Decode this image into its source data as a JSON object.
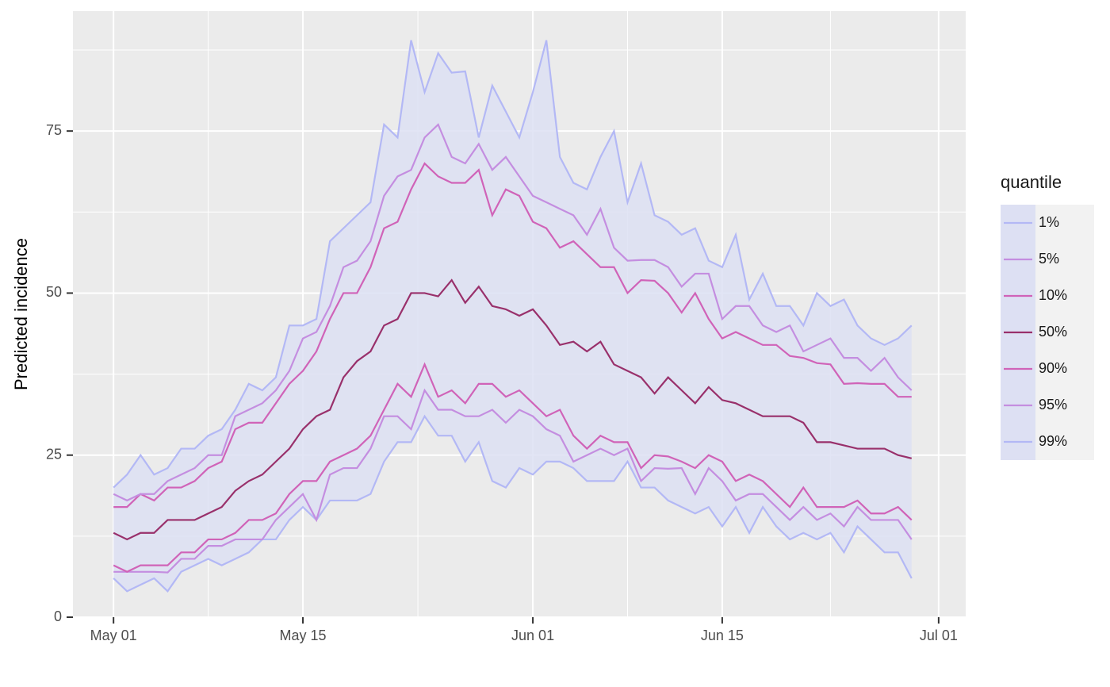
{
  "chart_data": {
    "type": "line",
    "ylabel": "Predicted incidence",
    "legend_title": "quantile",
    "legend_position": "right",
    "grid": true,
    "ribbon_color": "#dde0f3",
    "xlim": [
      "Apr 28",
      "Jul 03"
    ],
    "xticks": [
      "May 01",
      "May 15",
      "Jun 01",
      "Jun 15",
      "Jul 01"
    ],
    "ylim": [
      0,
      93.5
    ],
    "yticks": [
      0,
      25,
      50,
      75
    ],
    "x": [
      "May 01",
      "May 02",
      "May 03",
      "May 04",
      "May 05",
      "May 06",
      "May 07",
      "May 08",
      "May 09",
      "May 10",
      "May 11",
      "May 12",
      "May 13",
      "May 14",
      "May 15",
      "May 16",
      "May 17",
      "May 18",
      "May 19",
      "May 20",
      "May 21",
      "May 22",
      "May 23",
      "May 24",
      "May 25",
      "May 26",
      "May 27",
      "May 28",
      "May 29",
      "May 30",
      "May 31",
      "Jun 01",
      "Jun 02",
      "Jun 03",
      "Jun 04",
      "Jun 05",
      "Jun 06",
      "Jun 07",
      "Jun 08",
      "Jun 09",
      "Jun 10",
      "Jun 11",
      "Jun 12",
      "Jun 13",
      "Jun 14",
      "Jun 15",
      "Jun 16",
      "Jun 17",
      "Jun 18",
      "Jun 19",
      "Jun 20",
      "Jun 21",
      "Jun 22",
      "Jun 23",
      "Jun 24",
      "Jun 25",
      "Jun 26",
      "Jun 27",
      "Jun 28",
      "Jun 29"
    ],
    "series": [
      {
        "name": "1%",
        "color": "#b3b8f5",
        "values": [
          6,
          4,
          5,
          6,
          4,
          7,
          8,
          9,
          8,
          9,
          10,
          12,
          12,
          15,
          17,
          15,
          18,
          18,
          18,
          19,
          24,
          27,
          27,
          31,
          28,
          28,
          24,
          27,
          21,
          20,
          23,
          22,
          24,
          24,
          23,
          21,
          21,
          21,
          24,
          20,
          20,
          18,
          17,
          16,
          17,
          14,
          17,
          13,
          17,
          14,
          12,
          13,
          12,
          13,
          10,
          14,
          12,
          10,
          10,
          6
        ]
      },
      {
        "name": "5%",
        "color": "#c48ee0",
        "values": [
          7,
          7,
          7,
          7,
          6.9,
          9,
          9,
          11,
          11,
          12,
          12,
          12,
          15,
          17,
          19,
          15,
          22,
          23,
          23,
          26,
          31,
          31,
          29,
          35,
          32,
          32,
          31,
          31,
          32,
          30,
          32,
          31,
          29,
          28,
          24,
          25,
          26,
          25,
          26,
          21,
          23,
          22.9,
          23,
          19,
          23,
          21,
          18,
          19,
          19,
          17,
          15,
          17,
          15,
          16,
          14,
          17,
          15,
          15,
          15,
          12
        ]
      },
      {
        "name": "10%",
        "color": "#d063b8",
        "values": [
          8,
          7,
          8,
          8,
          8,
          10,
          10,
          12,
          12,
          13,
          15,
          15,
          16,
          19,
          21,
          21,
          24,
          25,
          26,
          28,
          32,
          36,
          34,
          39,
          34,
          35,
          33,
          36,
          36,
          34,
          35,
          33,
          31,
          32,
          28,
          26,
          28,
          27,
          27,
          23,
          25,
          24.8,
          24,
          23,
          25,
          24,
          21,
          22,
          21,
          19,
          17,
          20,
          17,
          17,
          17,
          18,
          16,
          16,
          17,
          15
        ]
      },
      {
        "name": "50%",
        "color": "#99306b",
        "values": [
          13,
          12,
          13,
          13,
          15,
          15,
          15,
          16,
          17,
          19.5,
          21,
          22,
          24,
          26,
          29,
          31,
          32,
          37,
          39.5,
          41,
          45,
          46,
          50,
          50,
          49.5,
          52,
          48.5,
          51,
          48,
          47.5,
          46.5,
          47.5,
          45,
          42,
          42.5,
          41,
          42.5,
          39,
          38,
          37,
          34.5,
          37,
          35,
          33,
          35.5,
          33.5,
          33,
          32,
          31,
          31,
          31,
          30,
          27,
          27,
          26.5,
          26,
          26,
          26,
          25,
          24.5
        ]
      },
      {
        "name": "90%",
        "color": "#d063b8",
        "values": [
          17,
          17,
          19,
          18,
          20,
          20,
          21,
          23,
          24,
          29,
          30,
          30,
          33,
          36,
          38,
          41,
          46,
          50,
          50,
          54,
          60,
          61,
          66,
          70,
          68,
          67,
          67,
          69,
          62,
          66,
          65,
          61,
          60,
          57,
          58,
          56,
          54,
          54,
          50,
          52,
          51.9,
          50,
          47,
          50,
          46,
          43,
          44,
          43,
          42,
          42,
          40.3,
          40,
          39.2,
          39,
          36,
          36.1,
          36,
          36,
          34,
          34
        ]
      },
      {
        "name": "95%",
        "color": "#c48ee0",
        "values": [
          19,
          18,
          19,
          19,
          21,
          22,
          23,
          25,
          25,
          31,
          32,
          33,
          35,
          38,
          43,
          44,
          48,
          54,
          55,
          58,
          65,
          68,
          69,
          74,
          76,
          71,
          70,
          73,
          69,
          71,
          68,
          65,
          64,
          63,
          62,
          59,
          63,
          57,
          55,
          55.1,
          55.1,
          54,
          51,
          53,
          53,
          46,
          48,
          48,
          45,
          44,
          45,
          41,
          42,
          43,
          40,
          40,
          38,
          40,
          37,
          35
        ]
      },
      {
        "name": "99%",
        "color": "#b3b8f5",
        "values": [
          20,
          22,
          25,
          22,
          23,
          26,
          26,
          28,
          29,
          32,
          36,
          35,
          37,
          45,
          45,
          46,
          58,
          60,
          62,
          64,
          76,
          74,
          89,
          81,
          87,
          84,
          84.2,
          74,
          82,
          78,
          74,
          81,
          89,
          71,
          67,
          66,
          71,
          75,
          64,
          70,
          62,
          61,
          59,
          60,
          55,
          54,
          59,
          49,
          53,
          48,
          48,
          45,
          50,
          48,
          49,
          45,
          43,
          42,
          43,
          45
        ]
      }
    ]
  }
}
